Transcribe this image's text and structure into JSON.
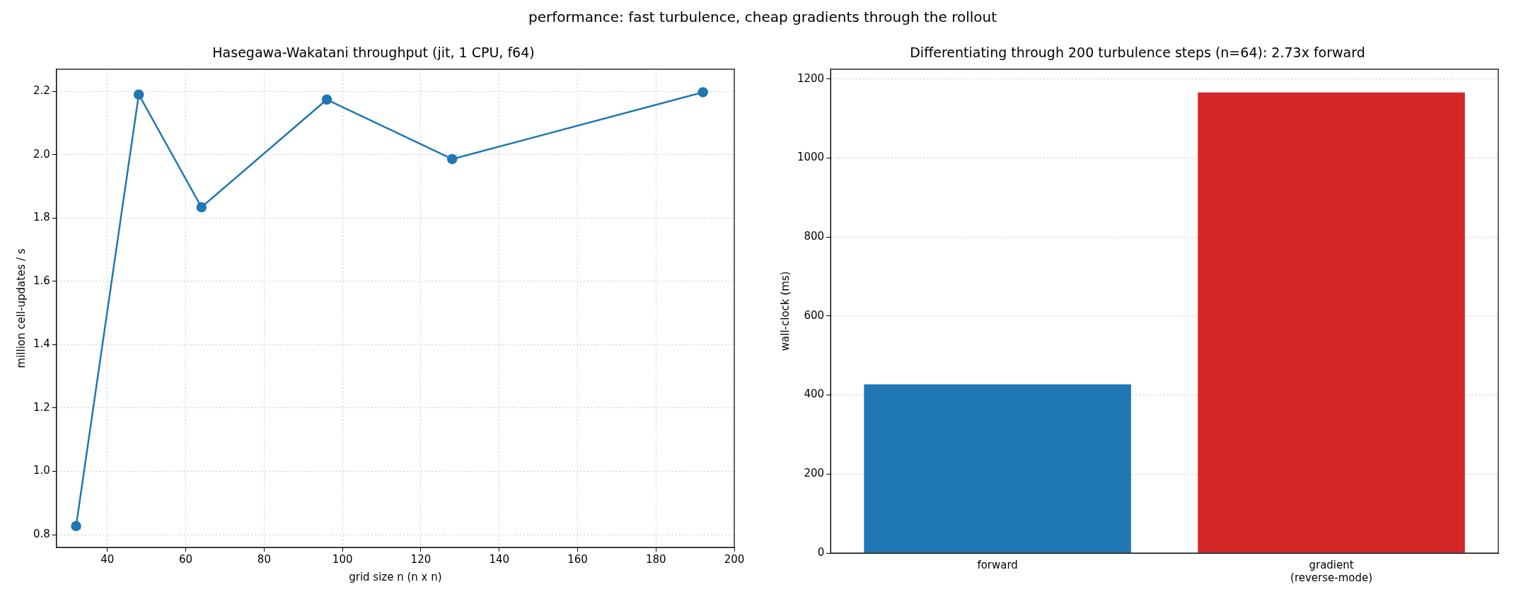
{
  "chart_data": [
    {
      "type": "line",
      "title": "performance: fast turbulence, cheap gradients through the rollout",
      "subtitle": "Hasegawa-Wakatani throughput (jit, 1 CPU, f64)",
      "xlabel": "grid size n (n x n)",
      "ylabel": "million cell-updates / s",
      "x": [
        32,
        48,
        64,
        96,
        128,
        192
      ],
      "series": [
        {
          "color": "#1f77b4",
          "values": [
            0.827,
            2.19,
            1.834,
            2.174,
            1.986,
            2.197
          ]
        }
      ],
      "xlim": [
        27,
        200
      ],
      "xticks": [
        40,
        60,
        80,
        100,
        120,
        140,
        160,
        180,
        200
      ],
      "ylim": [
        0.76,
        2.27
      ],
      "yticks": [
        0.8,
        {
          "value": 1,
          "label": "1.0"
        },
        1.2,
        1.4,
        1.6,
        1.8,
        {
          "value": 2,
          "label": "2.0"
        },
        2.2
      ],
      "grid": true,
      "marker": "circle",
      "line_style": "solid"
    },
    {
      "type": "bar",
      "subtitle": "Differentiating through 200 turbulence steps (n=64): 2.73x forward",
      "ylabel": "wall-clock (ms)",
      "categories": [
        "forward",
        "gradient\n(reverse-mode)"
      ],
      "values": [
        427,
        1166
      ],
      "colors": [
        "#1f77b4",
        "#d62728"
      ],
      "ylim": [
        0,
        1225
      ],
      "yticks": [
        0,
        200,
        400,
        600,
        800,
        1000,
        1200
      ],
      "grid": "y"
    }
  ]
}
